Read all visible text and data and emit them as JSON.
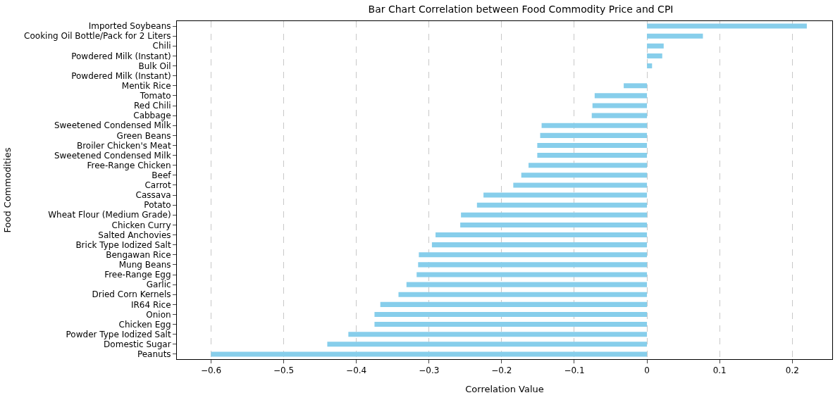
{
  "chart_data": {
    "type": "bar",
    "orientation": "horizontal",
    "title": "Bar Chart Correlation between Food Commodity Price and CPI",
    "xlabel": "Correlation Value",
    "ylabel": "Food Commodities",
    "categories": [
      "Imported Soybeans",
      "Cooking Oil Bottle/Pack for 2 Liters",
      "Chili",
      "Powdered Milk (Instant)",
      "Bulk Oil",
      "Powdered Milk (Instant)",
      "Mentik Rice",
      "Tomato",
      "Red Chili",
      "Cabbage",
      "Sweetened Condensed Milk",
      "Green Beans",
      "Broiler Chicken's Meat",
      "Sweetened Condensed Milk",
      "Free-Range Chicken",
      "Beef",
      "Carrot",
      "Cassava",
      "Potato",
      "Wheat Flour (Medium Grade)",
      "Chicken Curry",
      "Salted Anchovies",
      "Brick Type Iodized Salt",
      "Bengawan Rice",
      "Mung Beans",
      "Free-Range Egg",
      "Garlic",
      "Dried Corn Kernels",
      "IR64 Rice",
      "Onion",
      "Chicken Egg",
      "Powder Type Iodized Salt",
      "Domestic Sugar",
      "Peanuts"
    ],
    "values": [
      0.22,
      0.077,
      0.023,
      0.021,
      0.007,
      0.0,
      -0.032,
      -0.072,
      -0.075,
      -0.076,
      -0.145,
      -0.147,
      -0.151,
      -0.151,
      -0.163,
      -0.173,
      -0.184,
      -0.225,
      -0.234,
      -0.256,
      -0.257,
      -0.291,
      -0.296,
      -0.314,
      -0.315,
      -0.317,
      -0.331,
      -0.342,
      -0.367,
      -0.375,
      -0.375,
      -0.411,
      -0.44,
      -0.6
    ],
    "color": "#87ceeb",
    "xlim": [
      -0.647,
      0.255
    ],
    "xticks": [
      -0.6,
      -0.5,
      -0.4,
      -0.3,
      -0.2,
      -0.1,
      0.0,
      0.1,
      0.2
    ],
    "grid": "x",
    "legend": false
  }
}
